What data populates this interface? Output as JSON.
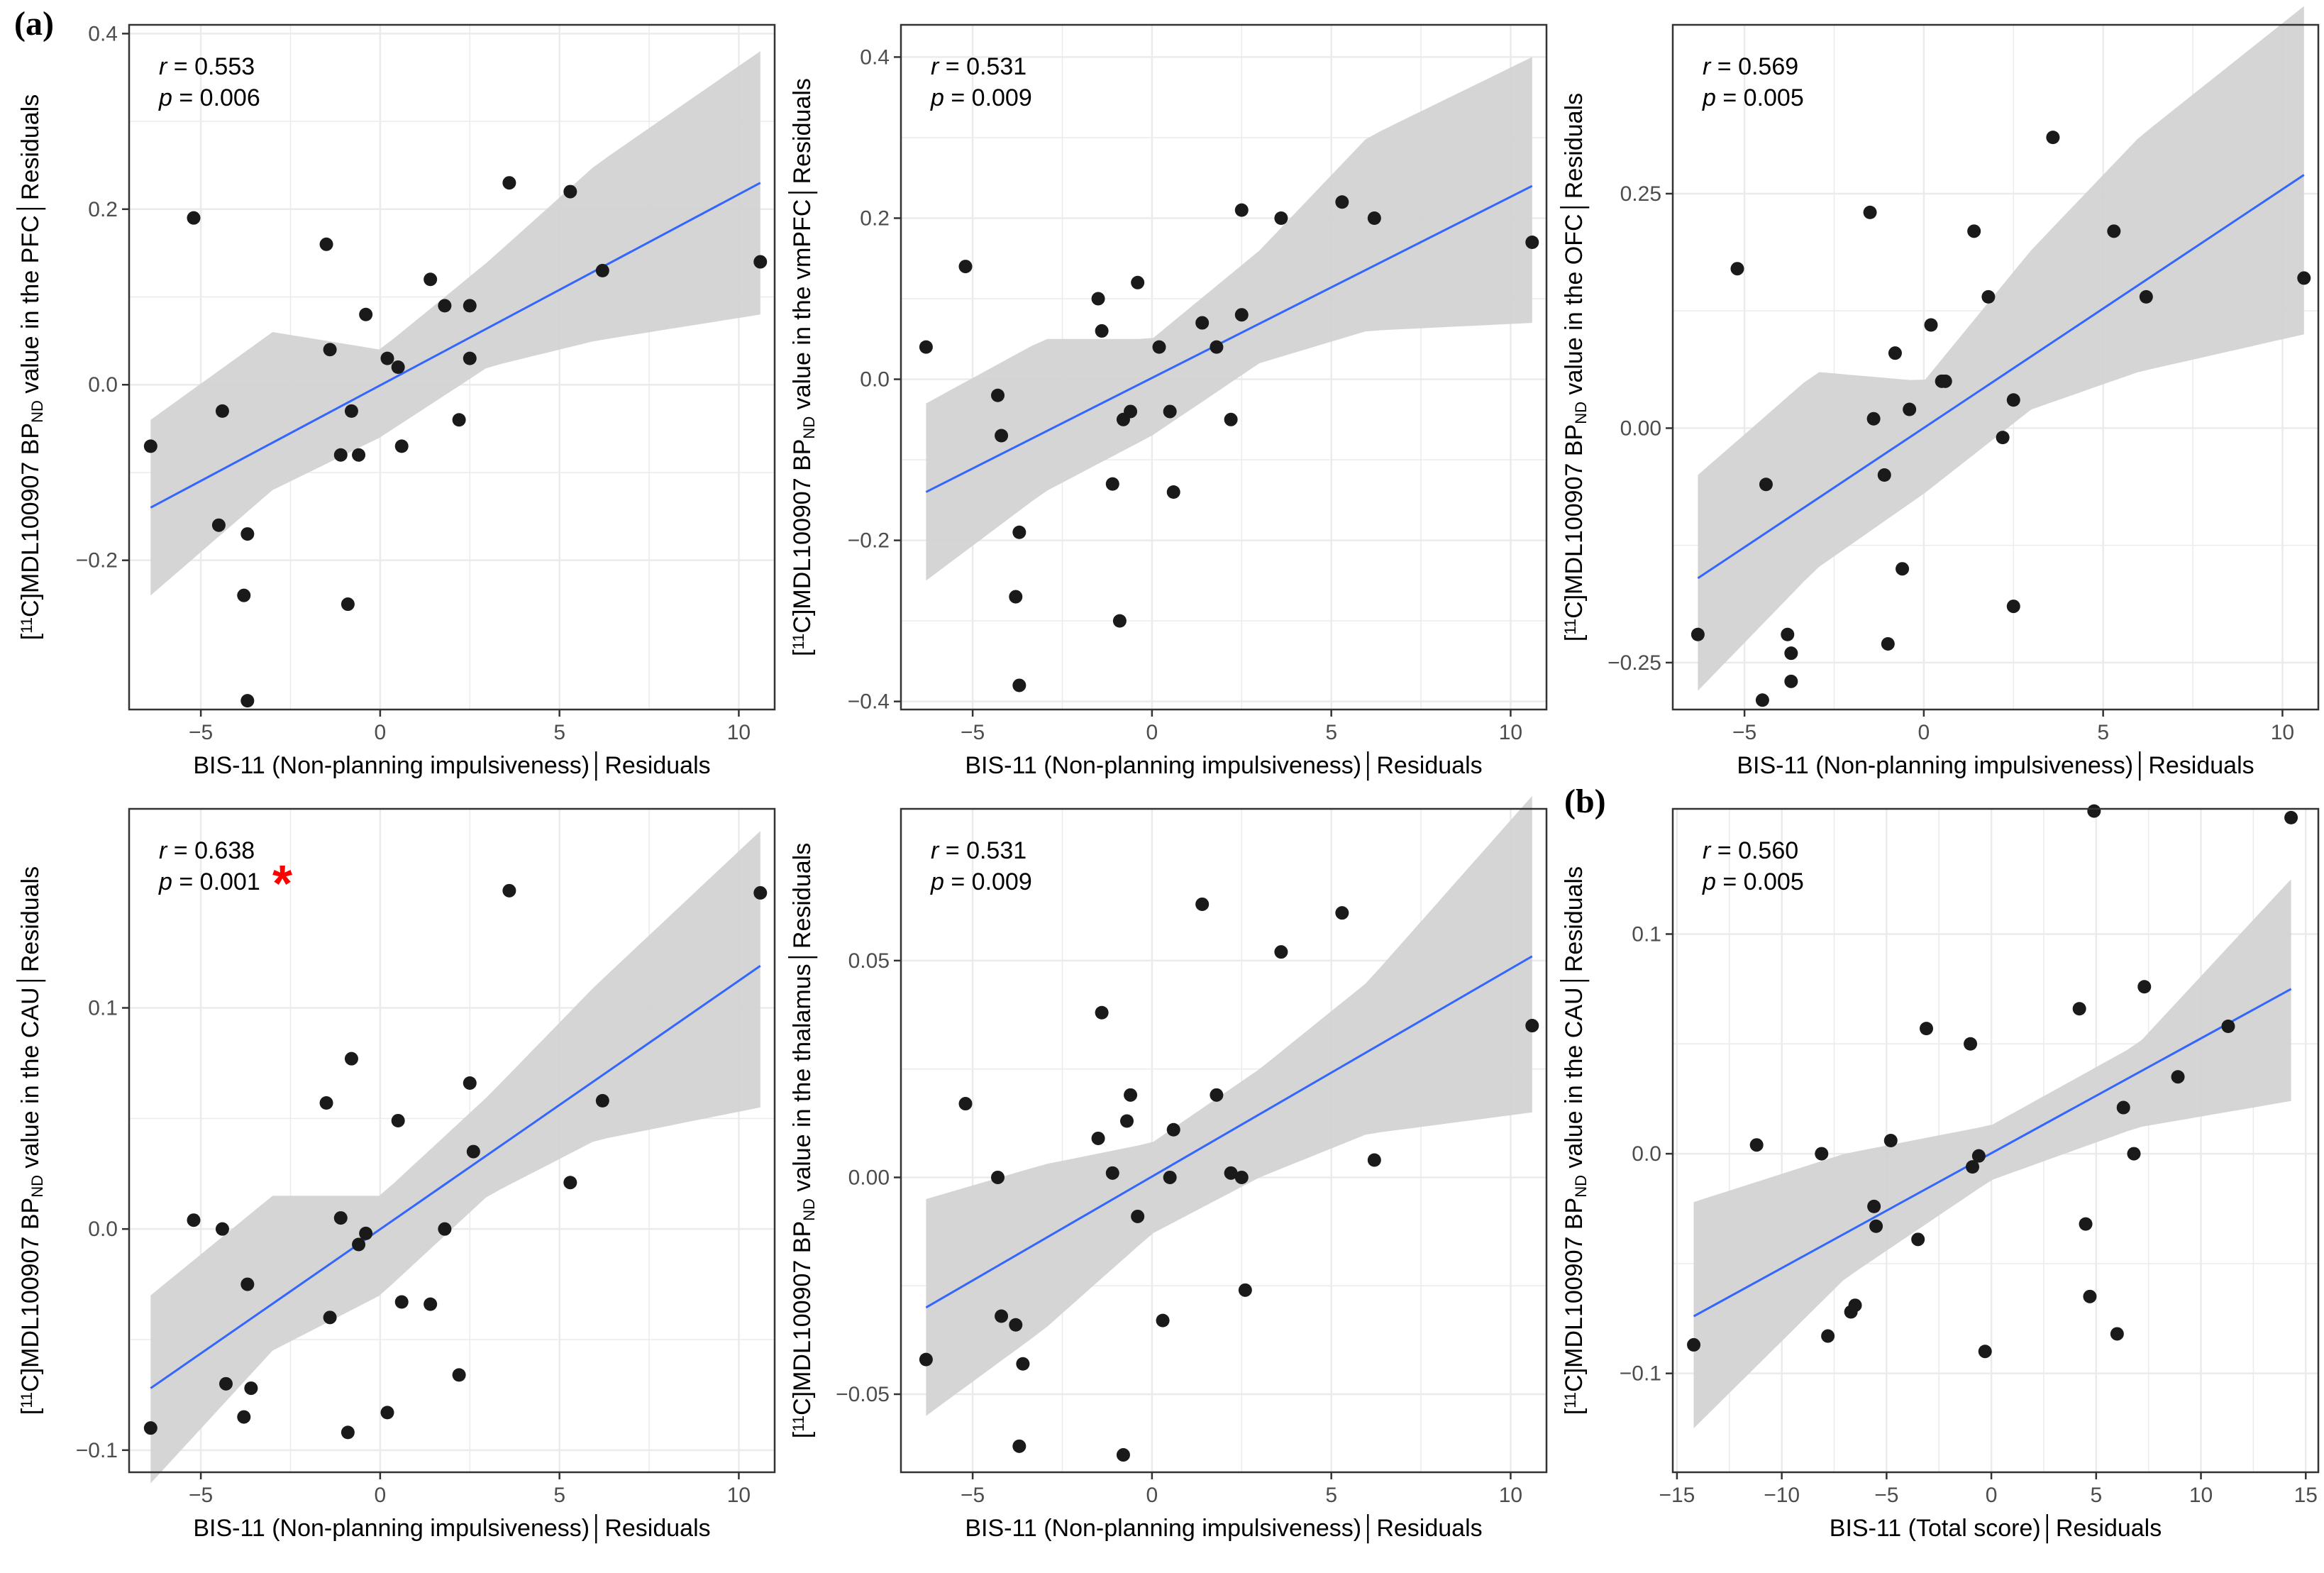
{
  "figure": {
    "panel_label_a": "(a)",
    "panel_label_b": "(b)"
  },
  "style": {
    "line_color": "#3366ff",
    "band_color": "#d3d3d3",
    "point_color": "#1a1a1a",
    "grid_color": "#ebebeb",
    "star_color": "#ff0000"
  },
  "chart_data": [
    {
      "type": "scatter",
      "title": "",
      "xlabel": "BIS-11 (Non-planning impulsiveness)│Residuals",
      "ylabel": {
        "pre": "[",
        "sup": "11",
        "mid": "C]MDL100907 BP",
        "sub": "ND",
        "post": " value in the PFC│Residuals"
      },
      "xlim": [
        -7,
        11
      ],
      "ylim": [
        -0.37,
        0.41
      ],
      "xticks": [
        -5,
        0,
        5,
        10
      ],
      "yticks": [
        -0.2,
        0.0,
        0.2,
        0.4
      ],
      "ytick_labels": [
        "-0.2",
        "0.0",
        "0.2",
        "0.4"
      ],
      "stats": {
        "r_label": "r",
        "r_value": " = 0.553",
        "p_label": "p",
        "p_value": " = 0.006"
      },
      "significant": false,
      "x": [
        -6.4,
        -5.2,
        -4.4,
        -4.5,
        -3.8,
        -3.7,
        -3.7,
        -1.5,
        -1.4,
        -1.1,
        -0.9,
        -0.8,
        -0.6,
        -0.4,
        0.2,
        0.5,
        0.6,
        1.4,
        1.8,
        2.2,
        2.5,
        2.5,
        3.6,
        5.3,
        6.2,
        10.6
      ],
      "y": [
        -0.07,
        0.19,
        -0.03,
        -0.16,
        -0.24,
        -0.17,
        -0.36,
        0.16,
        0.04,
        -0.08,
        -0.25,
        -0.03,
        -0.08,
        0.08,
        0.03,
        0.02,
        -0.07,
        0.12,
        0.09,
        -0.04,
        0.03,
        0.09,
        0.23,
        0.22,
        0.13,
        0.14
      ],
      "fit": {
        "x": [
          -6.4,
          10.6
        ],
        "y": [
          -0.14,
          0.23
        ]
      },
      "ci_upper": [
        [
          -6.4,
          -0.04
        ],
        [
          -3,
          0.06
        ],
        [
          0,
          0.04
        ],
        [
          3,
          0.14
        ],
        [
          6,
          0.25
        ],
        [
          10.6,
          0.38
        ]
      ],
      "ci_lower": [
        [
          -6.4,
          -0.24
        ],
        [
          -3,
          -0.12
        ],
        [
          0,
          -0.06
        ],
        [
          3,
          0.02
        ],
        [
          6,
          0.05
        ],
        [
          10.6,
          0.08
        ]
      ]
    },
    {
      "type": "scatter",
      "title": "",
      "xlabel": "BIS-11 (Non-planning impulsiveness)│Residuals",
      "ylabel": {
        "pre": "[",
        "sup": "11",
        "mid": "C]MDL100907 BP",
        "sub": "ND",
        "post": " value in the vmPFC│Residuals"
      },
      "xlim": [
        -7,
        11
      ],
      "ylim": [
        -0.41,
        0.44
      ],
      "xticks": [
        -5,
        0,
        5,
        10
      ],
      "yticks": [
        -0.4,
        -0.2,
        0.0,
        0.2,
        0.4
      ],
      "ytick_labels": [
        "-0.4",
        "-0.2",
        "0.0",
        "0.2",
        "0.4"
      ],
      "stats": {
        "r_label": "r",
        "r_value": " = 0.531",
        "p_label": "p",
        "p_value": " = 0.009"
      },
      "significant": false,
      "x": [
        -6.3,
        -5.2,
        -4.3,
        -4.2,
        -3.8,
        -3.7,
        -3.7,
        -1.5,
        -1.4,
        -1.1,
        -0.9,
        -0.8,
        -0.6,
        -0.4,
        0.2,
        0.5,
        0.6,
        1.4,
        1.8,
        2.2,
        2.5,
        2.5,
        3.6,
        5.3,
        6.2,
        10.6
      ],
      "y": [
        0.04,
        0.14,
        -0.02,
        -0.07,
        -0.27,
        -0.19,
        -0.38,
        0.1,
        0.06,
        -0.13,
        -0.3,
        -0.05,
        -0.04,
        0.12,
        0.04,
        -0.04,
        -0.14,
        0.07,
        0.04,
        -0.05,
        0.21,
        0.08,
        0.2,
        0.22,
        0.2,
        0.17
      ],
      "fit": {
        "x": [
          -6.3,
          10.6
        ],
        "y": [
          -0.14,
          0.24
        ]
      },
      "ci_upper": [
        [
          -6.3,
          -0.03
        ],
        [
          -3,
          0.05
        ],
        [
          0,
          0.05
        ],
        [
          3,
          0.16
        ],
        [
          6,
          0.3
        ],
        [
          10.6,
          0.4
        ]
      ],
      "ci_lower": [
        [
          -6.3,
          -0.25
        ],
        [
          -3,
          -0.14
        ],
        [
          0,
          -0.07
        ],
        [
          3,
          0.02
        ],
        [
          6,
          0.06
        ],
        [
          10.6,
          0.07
        ]
      ]
    },
    {
      "type": "scatter",
      "title": "",
      "xlabel": "BIS-11 (Non-planning impulsiveness)│Residuals",
      "ylabel": {
        "pre": "[",
        "sup": "11",
        "mid": "C]MDL100907 BP",
        "sub": "ND",
        "post": " value in the OFC│Residuals"
      },
      "xlim": [
        -7,
        11
      ],
      "ylim": [
        -0.3,
        0.43
      ],
      "xticks": [
        -5,
        0,
        5,
        10
      ],
      "yticks": [
        -0.25,
        0.0,
        0.25
      ],
      "ytick_labels": [
        "-0.25",
        "0.00",
        "0.25"
      ],
      "stats": {
        "r_label": "r",
        "r_value": " = 0.569",
        "p_label": "p",
        "p_value": " = 0.005"
      },
      "significant": false,
      "x": [
        -6.3,
        -5.2,
        -4.4,
        -4.5,
        -3.8,
        -3.7,
        -3.7,
        -1.5,
        -1.4,
        -1.1,
        -1.0,
        -0.8,
        -0.6,
        -0.4,
        0.2,
        0.5,
        0.6,
        1.4,
        1.8,
        2.2,
        2.5,
        2.5,
        3.6,
        5.3,
        6.2,
        10.6
      ],
      "y": [
        -0.22,
        0.17,
        -0.06,
        -0.29,
        -0.22,
        -0.24,
        -0.27,
        0.23,
        0.01,
        -0.05,
        -0.23,
        0.08,
        -0.15,
        0.02,
        0.11,
        0.05,
        0.05,
        0.21,
        0.14,
        -0.01,
        0.03,
        -0.19,
        0.31,
        0.21,
        0.14,
        0.16
      ],
      "fit": {
        "x": [
          -6.3,
          10.6
        ],
        "y": [
          -0.16,
          0.27
        ]
      },
      "ci_upper": [
        [
          -6.3,
          -0.05
        ],
        [
          -3,
          0.06
        ],
        [
          0,
          0.05
        ],
        [
          3,
          0.19
        ],
        [
          6,
          0.31
        ],
        [
          10.6,
          0.45
        ]
      ],
      "ci_lower": [
        [
          -6.3,
          -0.28
        ],
        [
          -3,
          -0.15
        ],
        [
          0,
          -0.07
        ],
        [
          3,
          0.02
        ],
        [
          6,
          0.06
        ],
        [
          10.6,
          0.1
        ]
      ]
    },
    {
      "type": "scatter",
      "title": "",
      "xlabel": "BIS-11 (Non-planning impulsiveness)│Residuals",
      "ylabel": {
        "pre": "[",
        "sup": "11",
        "mid": "C]MDL100907 BP",
        "sub": "ND",
        "post": " value in the CAU│Residuals"
      },
      "xlim": [
        -7,
        11
      ],
      "ylim": [
        -0.11,
        0.19
      ],
      "xticks": [
        -5,
        0,
        5,
        10
      ],
      "yticks": [
        -0.1,
        0.0,
        0.1
      ],
      "ytick_labels": [
        "-0.1",
        "0.0",
        "0.1"
      ],
      "stats": {
        "r_label": "r",
        "r_value": " = 0.638",
        "p_label": "p",
        "p_value": " = 0.001"
      },
      "significant": true,
      "significance_marker": "*",
      "x": [
        -6.4,
        -5.2,
        -4.4,
        -4.3,
        -3.8,
        -3.7,
        -3.6,
        -1.5,
        -1.4,
        -1.1,
        -0.9,
        -0.8,
        -0.6,
        -0.4,
        0.2,
        0.5,
        0.6,
        1.4,
        1.8,
        2.2,
        2.5,
        2.6,
        3.6,
        5.3,
        6.2,
        10.6
      ],
      "y": [
        -0.09,
        0.004,
        0.0,
        -0.07,
        -0.085,
        -0.025,
        -0.072,
        0.057,
        -0.04,
        0.005,
        -0.092,
        0.077,
        -0.007,
        -0.002,
        -0.083,
        0.049,
        -0.033,
        -0.034,
        0.0,
        -0.066,
        0.066,
        0.035,
        0.153,
        0.021,
        0.058,
        0.152
      ],
      "fit": {
        "x": [
          -6.4,
          10.6
        ],
        "y": [
          -0.072,
          0.119
        ]
      },
      "ci_upper": [
        [
          -6.4,
          -0.03
        ],
        [
          -3,
          0.015
        ],
        [
          0,
          0.015
        ],
        [
          3,
          0.06
        ],
        [
          6,
          0.11
        ],
        [
          10.6,
          0.18
        ]
      ],
      "ci_lower": [
        [
          -6.4,
          -0.115
        ],
        [
          -3,
          -0.055
        ],
        [
          0,
          -0.03
        ],
        [
          3,
          0.015
        ],
        [
          6,
          0.04
        ],
        [
          10.6,
          0.055
        ]
      ]
    },
    {
      "type": "scatter",
      "title": "",
      "xlabel": "BIS-11 (Non-planning impulsiveness)│Residuals",
      "ylabel": {
        "pre": "[",
        "sup": "11",
        "mid": "C]MDL100907 BP",
        "sub": "ND",
        "post": " value in the thalamus│Residuals"
      },
      "xlim": [
        -7,
        11
      ],
      "ylim": [
        -0.068,
        0.085
      ],
      "xticks": [
        -5,
        0,
        5,
        10
      ],
      "yticks": [
        -0.05,
        0.0,
        0.05
      ],
      "ytick_labels": [
        "-0.05",
        "0.00",
        "0.05"
      ],
      "stats": {
        "r_label": "r",
        "r_value": " = 0.531",
        "p_label": "p",
        "p_value": " = 0.009"
      },
      "significant": false,
      "x": [
        -6.3,
        -5.2,
        -4.3,
        -4.2,
        -3.8,
        -3.6,
        -3.7,
        -1.5,
        -1.4,
        -1.1,
        -0.8,
        -0.7,
        -0.6,
        -0.4,
        0.3,
        0.5,
        0.6,
        1.4,
        1.8,
        2.2,
        2.5,
        2.6,
        3.6,
        5.3,
        6.2,
        10.6
      ],
      "y": [
        -0.042,
        0.017,
        0.0,
        -0.032,
        -0.034,
        -0.043,
        -0.062,
        0.009,
        0.038,
        0.001,
        -0.064,
        0.013,
        0.019,
        -0.009,
        -0.033,
        0.0,
        0.011,
        0.063,
        0.019,
        0.001,
        0.0,
        -0.026,
        0.052,
        0.061,
        0.004,
        0.035
      ],
      "fit": {
        "x": [
          -6.3,
          10.6
        ],
        "y": [
          -0.03,
          0.051
        ]
      },
      "ci_upper": [
        [
          -6.3,
          -0.005
        ],
        [
          -3,
          0.003
        ],
        [
          0,
          0.008
        ],
        [
          3,
          0.025
        ],
        [
          6,
          0.045
        ],
        [
          10.6,
          0.088
        ]
      ],
      "ci_lower": [
        [
          -6.3,
          -0.055
        ],
        [
          -3,
          -0.035
        ],
        [
          0,
          -0.013
        ],
        [
          3,
          0.0
        ],
        [
          6,
          0.01
        ],
        [
          10.6,
          0.015
        ]
      ]
    },
    {
      "type": "scatter",
      "title": "",
      "xlabel": "BIS-11 (Total score)│Residuals",
      "ylabel": {
        "pre": "[",
        "sup": "11",
        "mid": "C]MDL100907 BP",
        "sub": "ND",
        "post": " value in the CAU│Residuals"
      },
      "xlim": [
        -15.2,
        15.6
      ],
      "ylim": [
        -0.145,
        0.157
      ],
      "xticks": [
        -15,
        -10,
        -5,
        0,
        5,
        10,
        15
      ],
      "yticks": [
        -0.1,
        0.0,
        0.1
      ],
      "ytick_labels": [
        "-0.1",
        "0.0",
        "0.1"
      ],
      "stats": {
        "r_label": "r",
        "r_value": " = 0.560",
        "p_label": "p",
        "p_value": " = 0.005"
      },
      "significant": false,
      "x": [
        -14.2,
        -11.2,
        -8.1,
        -7.8,
        -6.7,
        -6.5,
        -5.6,
        -5.5,
        -4.8,
        -3.5,
        -3.1,
        -1.0,
        -0.9,
        -0.6,
        -0.3,
        4.2,
        4.5,
        4.7,
        4.9,
        6.0,
        6.3,
        6.8,
        7.3,
        8.9,
        11.3,
        14.3
      ],
      "y": [
        -0.087,
        0.004,
        0.0,
        -0.083,
        -0.072,
        -0.069,
        -0.024,
        -0.033,
        0.006,
        -0.039,
        0.057,
        0.05,
        -0.006,
        -0.001,
        -0.09,
        0.066,
        -0.032,
        -0.065,
        0.156,
        -0.082,
        0.021,
        0.0,
        0.076,
        0.035,
        0.058,
        0.153
      ],
      "fit": {
        "x": [
          -14.2,
          14.3
        ],
        "y": [
          -0.074,
          0.075
        ]
      },
      "ci_upper": [
        [
          -14.2,
          -0.022
        ],
        [
          -7,
          0.0
        ],
        [
          0,
          0.013
        ],
        [
          7,
          0.05
        ],
        [
          14.3,
          0.125
        ]
      ],
      "ci_lower": [
        [
          -14.2,
          -0.125
        ],
        [
          -7,
          -0.057
        ],
        [
          0,
          -0.012
        ],
        [
          7,
          0.012
        ],
        [
          14.3,
          0.024
        ]
      ]
    }
  ]
}
